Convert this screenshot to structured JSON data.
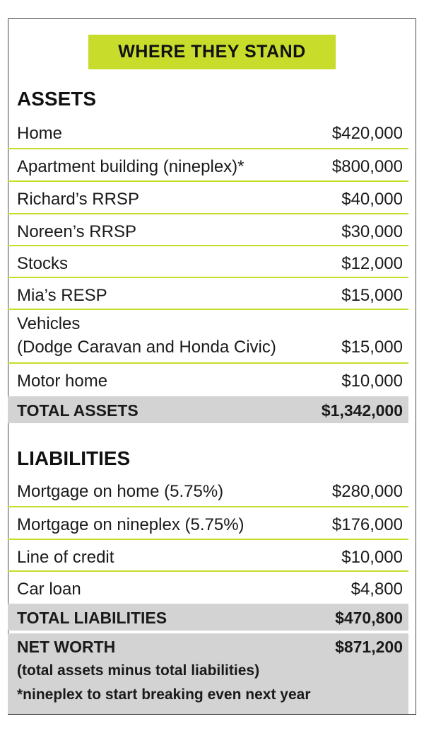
{
  "colors": {
    "accent": "#c8dc2c",
    "total_bg": "#d3d3d3"
  },
  "headline": "WHERE THEY STAND",
  "assets": {
    "title": "ASSETS",
    "items": [
      {
        "label": "Home",
        "amount": "$420,000"
      },
      {
        "label": "Apartment building (nineplex)*",
        "amount": "$800,000"
      },
      {
        "label": "Richard’s RRSP",
        "amount": "$40,000"
      },
      {
        "label": "Noreen’s RRSP",
        "amount": "$30,000"
      },
      {
        "label": "Stocks",
        "amount": "$12,000"
      },
      {
        "label": "Mia’s RESP",
        "amount": "$15,000"
      },
      {
        "label": "Vehicles",
        "label_line2": "(Dodge Caravan and Honda Civic)",
        "amount": "$15,000"
      },
      {
        "label": "Motor home",
        "amount": "$10,000"
      }
    ],
    "total_label": "TOTAL ASSETS",
    "total_amount": "$1,342,000"
  },
  "liabilities": {
    "title": "LIABILITIES",
    "items": [
      {
        "label": "Mortgage on home (5.75%)",
        "amount": "$280,000"
      },
      {
        "label": "Mortgage on nineplex (5.75%)",
        "amount": "$176,000"
      },
      {
        "label": "Line of credit",
        "amount": "$10,000"
      },
      {
        "label": "Car loan",
        "amount": "$4,800"
      }
    ],
    "total_label": "TOTAL LIABILITIES",
    "total_amount": "$470,800"
  },
  "net_worth": {
    "label": "NET WORTH",
    "amount": "$871,200",
    "note": "(total assets minus total liabilities)",
    "footnote": "*nineplex to start breaking even next year"
  }
}
